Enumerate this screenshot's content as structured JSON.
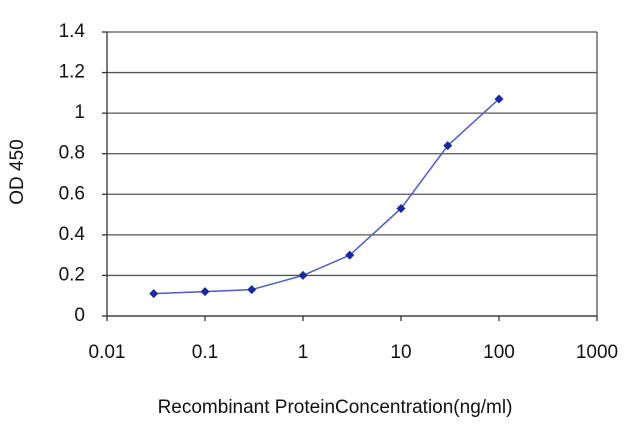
{
  "chart_data": {
    "type": "line",
    "x_label": "Recombinant ProteinConcentration(ng/ml)",
    "y_label": "OD 450",
    "x": [
      0.03,
      0.1,
      0.3,
      1,
      3,
      10,
      30,
      100
    ],
    "series": [
      {
        "color": "#1a2a9a",
        "values": [
          0.11,
          0.12,
          0.13,
          0.2,
          0.3,
          0.53,
          0.84,
          1.07
        ]
      }
    ],
    "xlim": [
      0.01,
      1000
    ],
    "xticks": [
      0.01,
      0.1,
      1,
      10,
      100,
      1000
    ],
    "xscale": "log",
    "ylim": [
      0,
      1.4
    ],
    "yticks": [
      0,
      0.2,
      0.4,
      0.6,
      0.8,
      1,
      1.2,
      1.4
    ],
    "grid": true
  }
}
